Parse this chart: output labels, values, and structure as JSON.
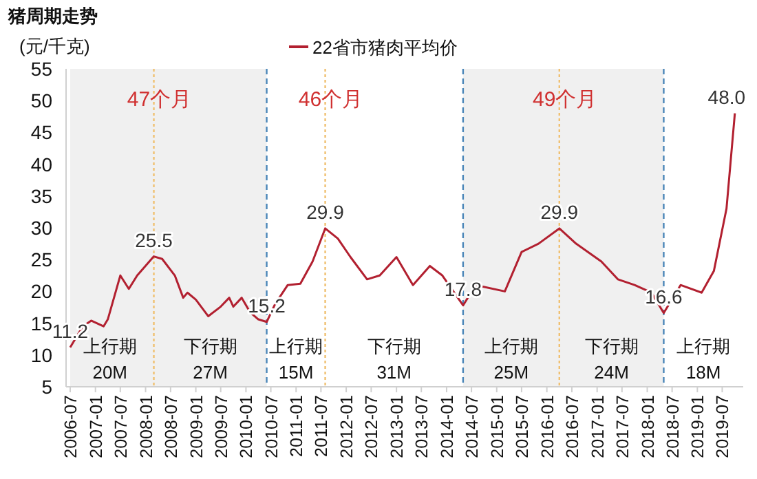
{
  "chart_data": {
    "type": "line",
    "title": "猪周期走势",
    "ylabel": "(元/千克)",
    "legend": "top",
    "x": [
      "2006-07",
      "2006-10",
      "2006-12",
      "2007-03",
      "2007-04",
      "2007-07",
      "2007-09",
      "2007-11",
      "2008-03",
      "2008-05",
      "2008-08",
      "2008-10",
      "2008-11",
      "2009-01",
      "2009-04",
      "2009-07",
      "2009-09",
      "2009-10",
      "2009-12",
      "2010-02",
      "2010-04",
      "2010-06",
      "2010-08",
      "2010-11",
      "2011-02",
      "2011-05",
      "2011-08",
      "2011-11",
      "2012-02",
      "2012-06",
      "2012-09",
      "2013-01",
      "2013-05",
      "2013-09",
      "2013-12",
      "2014-05",
      "2014-08",
      "2015-03",
      "2015-07",
      "2015-11",
      "2016-04",
      "2016-08",
      "2017-02",
      "2017-06",
      "2017-10",
      "2018-02",
      "2018-05",
      "2018-09",
      "2019-02",
      "2019-05",
      "2019-08",
      "2019-10"
    ],
    "series": [
      {
        "name": "22省市猪肉平均价",
        "color": "#b22030",
        "values": [
          11.2,
          14.5,
          15.4,
          14.5,
          15.6,
          22.5,
          20.4,
          22.5,
          25.5,
          25.1,
          22.5,
          19.0,
          19.8,
          18.7,
          16.1,
          17.6,
          19.0,
          17.6,
          19.0,
          16.7,
          15.6,
          15.2,
          18.0,
          21.0,
          21.2,
          24.7,
          29.9,
          28.3,
          25.4,
          21.9,
          22.5,
          25.4,
          21.0,
          24.0,
          22.5,
          17.8,
          21.0,
          20.0,
          26.2,
          27.5,
          29.9,
          27.5,
          24.7,
          21.9,
          21.0,
          19.8,
          16.6,
          21.0,
          19.8,
          23.2,
          33.0,
          48.0
        ],
        "value_labels": [
          "11.2",
          null,
          null,
          null,
          null,
          null,
          null,
          null,
          "25.5",
          null,
          null,
          null,
          null,
          null,
          null,
          null,
          null,
          null,
          null,
          null,
          null,
          "15.2",
          null,
          null,
          null,
          null,
          "29.9",
          null,
          null,
          null,
          null,
          null,
          null,
          null,
          null,
          "17.8",
          null,
          null,
          null,
          null,
          "29.9",
          null,
          null,
          null,
          null,
          null,
          "16.6",
          null,
          null,
          null,
          null,
          "48.0"
        ]
      }
    ],
    "xlim": [
      "2006-06-01",
      "2019-12-01"
    ],
    "xticks": [
      "2006-07",
      "2007-01",
      "2007-07",
      "2008-01",
      "2008-07",
      "2009-01",
      "2009-07",
      "2010-01",
      "2010-07",
      "2011-01",
      "2011-07",
      "2012-01",
      "2012-07",
      "2013-01",
      "2013-07",
      "2014-01",
      "2014-07",
      "2015-01",
      "2015-07",
      "2016-01",
      "2016-07",
      "2017-01",
      "2017-07",
      "2018-01",
      "2018-07",
      "2019-01",
      "2019-07"
    ],
    "ylim": [
      5,
      55
    ],
    "yticks": [
      5,
      10,
      15,
      20,
      25,
      30,
      35,
      40,
      45,
      50,
      55
    ],
    "bands": [
      {
        "axis": "x",
        "from": "2006-07",
        "to": "2010-06",
        "color": "#f0f0f0"
      },
      {
        "axis": "x",
        "from": "2014-05",
        "to": "2018-05",
        "color": "#f0f0f0"
      }
    ],
    "ref_lines": [
      {
        "axis": "x",
        "value": "2010-06",
        "color": "#4a86b8",
        "line_style": "dashed"
      },
      {
        "axis": "x",
        "value": "2014-05",
        "color": "#4a86b8",
        "line_style": "dashed"
      },
      {
        "axis": "x",
        "value": "2018-05",
        "color": "#4a86b8",
        "line_style": "dashed"
      },
      {
        "axis": "x",
        "value": "2008-03",
        "color": "#f0c070",
        "line_style": "dotted"
      },
      {
        "axis": "x",
        "value": "2011-08",
        "color": "#f0c070",
        "line_style": "dotted"
      },
      {
        "axis": "x",
        "value": "2016-04",
        "color": "#f0c070",
        "line_style": "dotted"
      }
    ],
    "annotations": [
      "47个月",
      "46个月",
      "49个月",
      "上行期\n20M",
      "下行期\n27M",
      "上行期\n15M",
      "下行期\n31M",
      "上行期\n25M",
      "下行期\n24M",
      "上行期\n18M"
    ]
  }
}
